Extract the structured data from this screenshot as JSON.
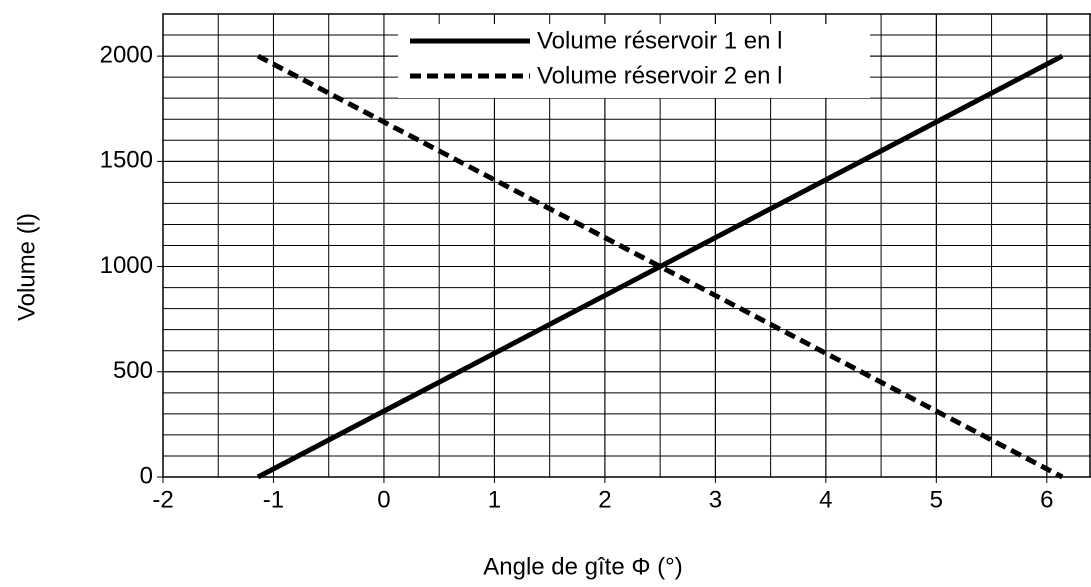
{
  "chart_data": {
    "type": "line",
    "x_label": "Angle de gîte Φ (°)",
    "y_label": "Volume (l)",
    "xlim": [
      -2,
      6.4
    ],
    "ylim": [
      0,
      2200
    ],
    "xticks": [
      -2,
      -1,
      0,
      1,
      2,
      3,
      4,
      5,
      6
    ],
    "yticks": [
      0,
      500,
      1000,
      1500,
      2000
    ],
    "grid": true,
    "minor_grid": {
      "x": 0.5,
      "y": 100
    },
    "legend": "top",
    "series": [
      {
        "name": "Volume réservoir 1 en l",
        "color": "#000000",
        "style": "solid",
        "x": [
          -1.14,
          6.14
        ],
        "values": [
          0,
          2000
        ]
      },
      {
        "name": "Volume réservoir 2 en l",
        "color": "#000000",
        "style": "dashed",
        "x": [
          -1.14,
          6.14
        ],
        "values": [
          2000,
          0
        ]
      }
    ]
  }
}
